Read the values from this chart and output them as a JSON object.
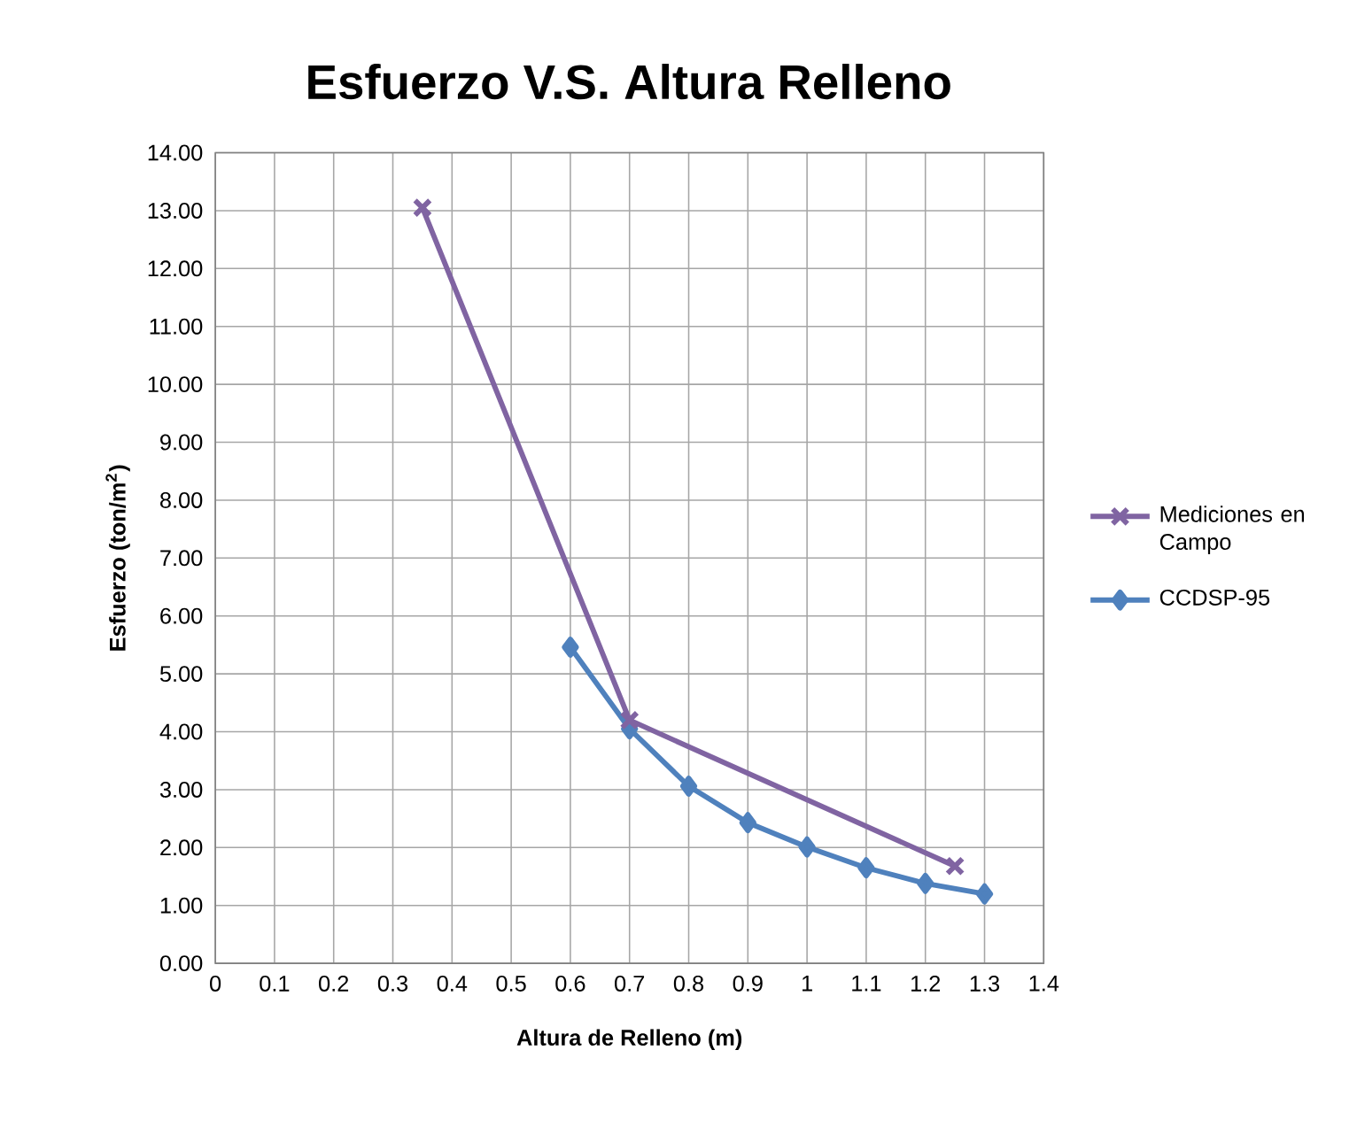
{
  "chart_data": {
    "type": "line",
    "title": "Esfuerzo V.S. Altura Relleno",
    "xlabel": "Altura de Relleno (m)",
    "ylabel": "Esfuerzo (ton/m$^{2}$)",
    "series": [
      {
        "name": "Mediciones en Campo",
        "color": "#8064a2",
        "marker": "cross",
        "x": [
          0.35,
          0.7,
          1.25
        ],
        "values": [
          13.05,
          4.2,
          1.68
        ]
      },
      {
        "name": "CCDSP-95",
        "color": "#4f81bd",
        "marker": "diamond",
        "x": [
          0.6,
          0.7,
          0.8,
          0.9,
          1.0,
          1.1,
          1.2,
          1.3
        ],
        "values": [
          5.46,
          4.05,
          3.06,
          2.43,
          2.01,
          1.65,
          1.38,
          1.2
        ]
      }
    ],
    "xlim": [
      0,
      1.4
    ],
    "ylim": [
      0,
      14
    ],
    "xticks": [
      0,
      0.1,
      0.2,
      0.3,
      0.4,
      0.5,
      0.6,
      0.7,
      0.8,
      0.9,
      1,
      1.1,
      1.2,
      1.3,
      1.4
    ],
    "yticks": [
      {
        "value": 0,
        "label": "0.00"
      },
      {
        "value": 1,
        "label": "1.00"
      },
      {
        "value": 2,
        "label": "2.00"
      },
      {
        "value": 3,
        "label": "3.00"
      },
      {
        "value": 4,
        "label": "4.00"
      },
      {
        "value": 5,
        "label": "5.00"
      },
      {
        "value": 6,
        "label": "6.00"
      },
      {
        "value": 7,
        "label": "7.00"
      },
      {
        "value": 8,
        "label": "8.00"
      },
      {
        "value": 9,
        "label": "9.00"
      },
      {
        "value": 10,
        "label": "10.00"
      },
      {
        "value": 11,
        "label": "11.00"
      },
      {
        "value": 12,
        "label": "12.00"
      },
      {
        "value": 13,
        "label": "13.00"
      },
      {
        "value": 14,
        "label": "14.00"
      }
    ],
    "grid": true,
    "legend": "right",
    "line_style": "solid"
  }
}
